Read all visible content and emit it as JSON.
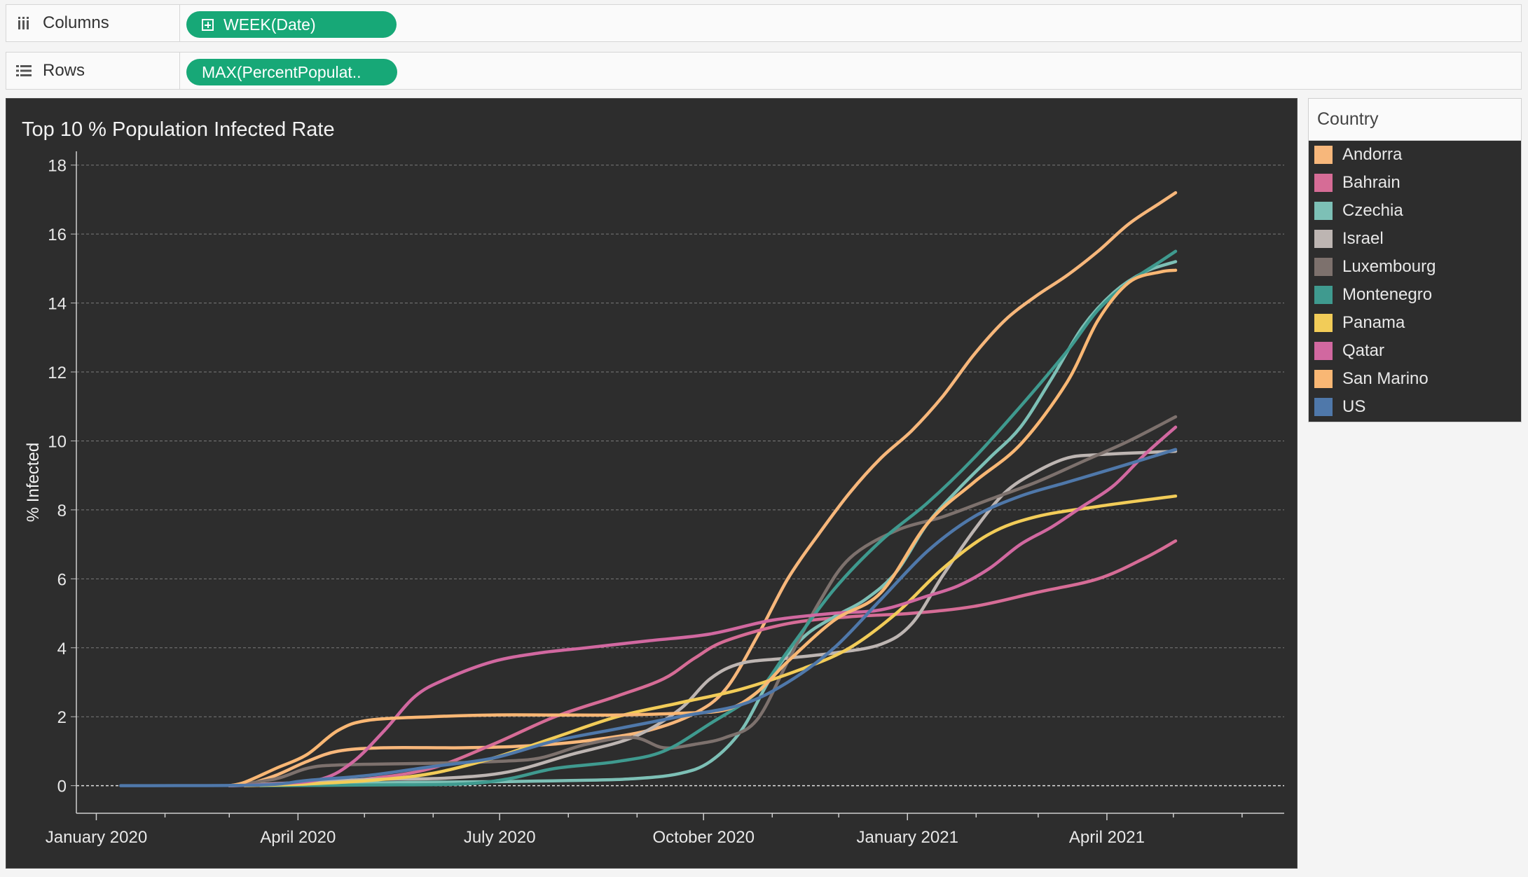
{
  "shelves": {
    "columns": {
      "label": "Columns",
      "pill": "WEEK(Date)"
    },
    "rows": {
      "label": "Rows",
      "pill": "MAX(PercentPopulat.."
    }
  },
  "colors": {
    "background": "#2d2d2d",
    "pill": "#17a877",
    "grid": "#7a7a7a",
    "axis_text": "#e8e8e8"
  },
  "legend": {
    "title": "Country",
    "items": [
      {
        "label": "Andorra",
        "color": "#f7b77b"
      },
      {
        "label": "Bahrain",
        "color": "#d66c96"
      },
      {
        "label": "Czechia",
        "color": "#7dc0b6"
      },
      {
        "label": "Israel",
        "color": "#bdb5b2"
      },
      {
        "label": "Luxembourg",
        "color": "#7d716d"
      },
      {
        "label": "Montenegro",
        "color": "#3f9a8f"
      },
      {
        "label": "Panama",
        "color": "#f2cc58"
      },
      {
        "label": "Qatar",
        "color": "#d168a0"
      },
      {
        "label": "San Marino",
        "color": "#f9b774"
      },
      {
        "label": "US",
        "color": "#4f78aa"
      }
    ]
  },
  "chart_data": {
    "type": "line",
    "title": "Top 10 % Population Infected Rate",
    "xlabel": "",
    "ylabel": "% Infected",
    "ylim": [
      -0.8,
      18.4
    ],
    "xlim": [
      "2019-12-23",
      "2021-06-20"
    ],
    "y_ticks": [
      0,
      2,
      4,
      6,
      8,
      10,
      12,
      14,
      16,
      18
    ],
    "x_ticks": [
      {
        "date": "2020-01-01",
        "label": "January 2020"
      },
      {
        "date": "2020-04-01",
        "label": "April 2020"
      },
      {
        "date": "2020-07-01",
        "label": "July 2020"
      },
      {
        "date": "2020-10-01",
        "label": "October 2020"
      },
      {
        "date": "2021-01-01",
        "label": "January 2021"
      },
      {
        "date": "2021-04-01",
        "label": "April 2021"
      }
    ],
    "grid": true,
    "legend_position": "right",
    "series": [
      {
        "name": "Andorra",
        "color": "#f7b77b",
        "points": [
          [
            "2020-03-08",
            0
          ],
          [
            "2020-03-22",
            0.3
          ],
          [
            "2020-04-05",
            0.7
          ],
          [
            "2020-04-19",
            1.0
          ],
          [
            "2020-05-10",
            1.1
          ],
          [
            "2020-06-14",
            1.1
          ],
          [
            "2020-07-12",
            1.15
          ],
          [
            "2020-08-09",
            1.3
          ],
          [
            "2020-09-06",
            1.6
          ],
          [
            "2020-09-27",
            2.1
          ],
          [
            "2020-10-11",
            2.8
          ],
          [
            "2020-10-25",
            4.3
          ],
          [
            "2020-11-08",
            6.0
          ],
          [
            "2020-11-22",
            7.3
          ],
          [
            "2020-12-06",
            8.5
          ],
          [
            "2020-12-20",
            9.5
          ],
          [
            "2021-01-03",
            10.3
          ],
          [
            "2021-01-17",
            11.3
          ],
          [
            "2021-01-31",
            12.5
          ],
          [
            "2021-02-14",
            13.5
          ],
          [
            "2021-02-28",
            14.2
          ],
          [
            "2021-03-14",
            14.8
          ],
          [
            "2021-03-28",
            15.5
          ],
          [
            "2021-04-11",
            16.3
          ],
          [
            "2021-04-25",
            16.9
          ],
          [
            "2021-05-02",
            17.2
          ]
        ]
      },
      {
        "name": "Bahrain",
        "color": "#d66c96",
        "points": [
          [
            "2020-03-01",
            0
          ],
          [
            "2020-04-05",
            0.05
          ],
          [
            "2020-05-03",
            0.2
          ],
          [
            "2020-05-31",
            0.5
          ],
          [
            "2020-06-28",
            1.2
          ],
          [
            "2020-07-26",
            2.0
          ],
          [
            "2020-08-23",
            2.6
          ],
          [
            "2020-09-13",
            3.1
          ],
          [
            "2020-09-27",
            3.7
          ],
          [
            "2020-10-11",
            4.2
          ],
          [
            "2020-11-08",
            4.7
          ],
          [
            "2020-12-06",
            4.9
          ],
          [
            "2021-01-03",
            5.0
          ],
          [
            "2021-01-31",
            5.2
          ],
          [
            "2021-02-28",
            5.6
          ],
          [
            "2021-03-28",
            6.0
          ],
          [
            "2021-04-18",
            6.6
          ],
          [
            "2021-05-02",
            7.1
          ]
        ]
      },
      {
        "name": "Czechia",
        "color": "#7dc0b6",
        "points": [
          [
            "2020-03-01",
            0
          ],
          [
            "2020-05-03",
            0.08
          ],
          [
            "2020-07-05",
            0.12
          ],
          [
            "2020-08-02",
            0.15
          ],
          [
            "2020-08-30",
            0.2
          ],
          [
            "2020-09-20",
            0.35
          ],
          [
            "2020-10-04",
            0.7
          ],
          [
            "2020-10-18",
            1.6
          ],
          [
            "2020-11-01",
            3.2
          ],
          [
            "2020-11-15",
            4.3
          ],
          [
            "2020-11-29",
            4.9
          ],
          [
            "2020-12-13",
            5.4
          ],
          [
            "2020-12-27",
            6.2
          ],
          [
            "2021-01-10",
            7.6
          ],
          [
            "2021-01-24",
            8.6
          ],
          [
            "2021-02-07",
            9.5
          ],
          [
            "2021-02-21",
            10.4
          ],
          [
            "2021-03-07",
            11.8
          ],
          [
            "2021-03-21",
            13.3
          ],
          [
            "2021-04-04",
            14.3
          ],
          [
            "2021-04-18",
            14.9
          ],
          [
            "2021-05-02",
            15.2
          ]
        ]
      },
      {
        "name": "Israel",
        "color": "#bdb5b2",
        "points": [
          [
            "2020-03-01",
            0
          ],
          [
            "2020-04-05",
            0.1
          ],
          [
            "2020-05-03",
            0.18
          ],
          [
            "2020-06-07",
            0.22
          ],
          [
            "2020-07-05",
            0.4
          ],
          [
            "2020-08-02",
            0.9
          ],
          [
            "2020-08-30",
            1.4
          ],
          [
            "2020-09-20",
            2.2
          ],
          [
            "2020-10-04",
            3.1
          ],
          [
            "2020-10-18",
            3.55
          ],
          [
            "2020-11-08",
            3.7
          ],
          [
            "2020-11-29",
            3.85
          ],
          [
            "2020-12-20",
            4.1
          ],
          [
            "2021-01-03",
            4.7
          ],
          [
            "2021-01-17",
            6.1
          ],
          [
            "2021-01-31",
            7.4
          ],
          [
            "2021-02-14",
            8.5
          ],
          [
            "2021-02-28",
            9.1
          ],
          [
            "2021-03-14",
            9.5
          ],
          [
            "2021-03-28",
            9.6
          ],
          [
            "2021-05-02",
            9.7
          ]
        ]
      },
      {
        "name": "Luxembourg",
        "color": "#7d716d",
        "points": [
          [
            "2020-03-01",
            0
          ],
          [
            "2020-03-22",
            0.2
          ],
          [
            "2020-04-05",
            0.5
          ],
          [
            "2020-04-19",
            0.6
          ],
          [
            "2020-05-31",
            0.65
          ],
          [
            "2020-06-28",
            0.7
          ],
          [
            "2020-07-19",
            0.8
          ],
          [
            "2020-08-09",
            1.2
          ],
          [
            "2020-08-30",
            1.4
          ],
          [
            "2020-09-13",
            1.1
          ],
          [
            "2020-09-27",
            1.2
          ],
          [
            "2020-10-11",
            1.4
          ],
          [
            "2020-10-25",
            1.9
          ],
          [
            "2020-11-08",
            3.6
          ],
          [
            "2020-11-22",
            5.3
          ],
          [
            "2020-12-06",
            6.6
          ],
          [
            "2020-12-27",
            7.4
          ],
          [
            "2021-01-17",
            7.8
          ],
          [
            "2021-02-07",
            8.3
          ],
          [
            "2021-02-28",
            8.8
          ],
          [
            "2021-03-21",
            9.4
          ],
          [
            "2021-04-11",
            10.0
          ],
          [
            "2021-05-02",
            10.7
          ]
        ]
      },
      {
        "name": "Montenegro",
        "color": "#3f9a8f",
        "points": [
          [
            "2020-03-15",
            0
          ],
          [
            "2020-05-03",
            0.02
          ],
          [
            "2020-06-14",
            0.05
          ],
          [
            "2020-07-05",
            0.2
          ],
          [
            "2020-07-26",
            0.5
          ],
          [
            "2020-08-23",
            0.7
          ],
          [
            "2020-09-13",
            1.0
          ],
          [
            "2020-10-04",
            1.8
          ],
          [
            "2020-10-25",
            2.7
          ],
          [
            "2020-11-08",
            3.9
          ],
          [
            "2020-11-29",
            5.7
          ],
          [
            "2020-12-20",
            7.1
          ],
          [
            "2021-01-10",
            8.2
          ],
          [
            "2021-01-31",
            9.5
          ],
          [
            "2021-02-21",
            11.0
          ],
          [
            "2021-03-14",
            12.6
          ],
          [
            "2021-03-28",
            13.8
          ],
          [
            "2021-04-11",
            14.6
          ],
          [
            "2021-04-25",
            15.2
          ],
          [
            "2021-05-02",
            15.5
          ]
        ]
      },
      {
        "name": "Panama",
        "color": "#f2cc58",
        "points": [
          [
            "2020-03-08",
            0
          ],
          [
            "2020-04-05",
            0.05
          ],
          [
            "2020-05-03",
            0.15
          ],
          [
            "2020-05-31",
            0.35
          ],
          [
            "2020-06-28",
            0.8
          ],
          [
            "2020-07-26",
            1.4
          ],
          [
            "2020-08-23",
            2.0
          ],
          [
            "2020-09-20",
            2.4
          ],
          [
            "2020-10-18",
            2.8
          ],
          [
            "2020-11-15",
            3.4
          ],
          [
            "2020-12-06",
            4.0
          ],
          [
            "2020-12-27",
            5.0
          ],
          [
            "2021-01-17",
            6.3
          ],
          [
            "2021-02-07",
            7.3
          ],
          [
            "2021-02-28",
            7.8
          ],
          [
            "2021-03-28",
            8.1
          ],
          [
            "2021-05-02",
            8.4
          ]
        ]
      },
      {
        "name": "Qatar",
        "color": "#d168a0",
        "points": [
          [
            "2020-03-01",
            0
          ],
          [
            "2020-03-22",
            0.05
          ],
          [
            "2020-04-12",
            0.2
          ],
          [
            "2020-04-26",
            0.7
          ],
          [
            "2020-05-10",
            1.6
          ],
          [
            "2020-05-24",
            2.6
          ],
          [
            "2020-06-07",
            3.1
          ],
          [
            "2020-06-28",
            3.6
          ],
          [
            "2020-07-19",
            3.85
          ],
          [
            "2020-08-09",
            4.0
          ],
          [
            "2020-09-06",
            4.2
          ],
          [
            "2020-10-04",
            4.4
          ],
          [
            "2020-11-01",
            4.8
          ],
          [
            "2020-11-29",
            5.0
          ],
          [
            "2020-12-20",
            5.1
          ],
          [
            "2021-01-10",
            5.5
          ],
          [
            "2021-01-24",
            5.8
          ],
          [
            "2021-02-07",
            6.3
          ],
          [
            "2021-02-21",
            7.0
          ],
          [
            "2021-03-07",
            7.5
          ],
          [
            "2021-03-21",
            8.1
          ],
          [
            "2021-04-04",
            8.7
          ],
          [
            "2021-04-18",
            9.6
          ],
          [
            "2021-05-02",
            10.4
          ]
        ]
      },
      {
        "name": "San Marino",
        "color": "#f9b774",
        "points": [
          [
            "2020-03-01",
            0
          ],
          [
            "2020-03-08",
            0.1
          ],
          [
            "2020-03-22",
            0.5
          ],
          [
            "2020-04-05",
            0.9
          ],
          [
            "2020-04-19",
            1.6
          ],
          [
            "2020-05-03",
            1.9
          ],
          [
            "2020-05-31",
            2.0
          ],
          [
            "2020-06-28",
            2.05
          ],
          [
            "2020-07-26",
            2.05
          ],
          [
            "2020-08-23",
            2.05
          ],
          [
            "2020-09-20",
            2.1
          ],
          [
            "2020-10-11",
            2.2
          ],
          [
            "2020-10-25",
            2.7
          ],
          [
            "2020-11-08",
            3.6
          ],
          [
            "2020-11-29",
            4.8
          ],
          [
            "2020-12-20",
            5.6
          ],
          [
            "2021-01-10",
            7.6
          ],
          [
            "2021-01-31",
            8.8
          ],
          [
            "2021-02-21",
            9.9
          ],
          [
            "2021-03-14",
            11.7
          ],
          [
            "2021-03-28",
            13.5
          ],
          [
            "2021-04-11",
            14.6
          ],
          [
            "2021-04-25",
            14.9
          ],
          [
            "2021-05-02",
            14.95
          ]
        ]
      },
      {
        "name": "US",
        "color": "#4f78aa",
        "points": [
          [
            "2020-01-12",
            0
          ],
          [
            "2020-03-15",
            0.02
          ],
          [
            "2020-04-05",
            0.15
          ],
          [
            "2020-05-03",
            0.3
          ],
          [
            "2020-05-31",
            0.55
          ],
          [
            "2020-06-28",
            0.8
          ],
          [
            "2020-07-26",
            1.3
          ],
          [
            "2020-08-23",
            1.65
          ],
          [
            "2020-09-20",
            2.0
          ],
          [
            "2020-10-18",
            2.35
          ],
          [
            "2020-11-08",
            3.0
          ],
          [
            "2020-11-29",
            4.0
          ],
          [
            "2020-12-20",
            5.4
          ],
          [
            "2021-01-10",
            6.8
          ],
          [
            "2021-01-31",
            7.8
          ],
          [
            "2021-02-21",
            8.4
          ],
          [
            "2021-03-14",
            8.8
          ],
          [
            "2021-04-04",
            9.2
          ],
          [
            "2021-05-02",
            9.75
          ]
        ]
      }
    ]
  }
}
